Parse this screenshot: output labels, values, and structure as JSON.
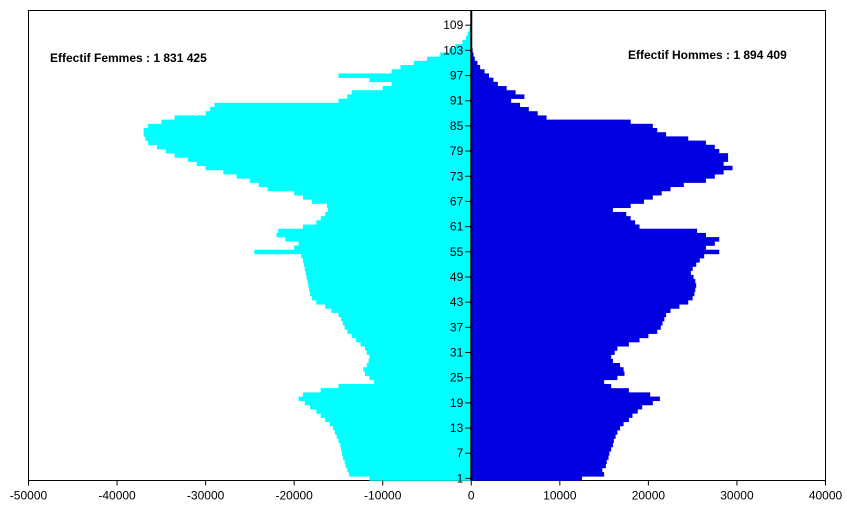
{
  "chart_data": {
    "type": "bar",
    "orientation": "horizontal",
    "annotations": {
      "femmes": "Effectif Femmes : 1 831 425",
      "hommes": "Effectif Hommes : 1 894 409"
    },
    "xlim": [
      -50000,
      40000
    ],
    "x_ticks": [
      -50000,
      -40000,
      -30000,
      -20000,
      -10000,
      0,
      10000,
      20000,
      30000,
      40000
    ],
    "age_range": [
      1,
      112
    ],
    "age_tick_labels": [
      "1",
      "7",
      "13",
      "19",
      "25",
      "31",
      "37",
      "43",
      "49",
      "55",
      "61",
      "67",
      "73",
      "79",
      "85",
      "91",
      "97",
      "103",
      "109"
    ],
    "colors": {
      "femmes": "#00ffff",
      "hommes": "#0000e0",
      "axis": "#000000"
    },
    "series": [
      {
        "key": "femmes",
        "values": [
          11500,
          13800,
          14000,
          14200,
          14300,
          14500,
          14600,
          14700,
          14800,
          15000,
          15200,
          15400,
          15600,
          16000,
          16500,
          17000,
          17500,
          18200,
          18800,
          19500,
          19000,
          17000,
          15000,
          11000,
          11500,
          12000,
          12200,
          11800,
          11600,
          11500,
          11800,
          12000,
          12500,
          13000,
          13500,
          14000,
          14300,
          14500,
          14700,
          15000,
          15800,
          16500,
          17500,
          18000,
          18200,
          18300,
          18400,
          18500,
          18600,
          18700,
          18800,
          18900,
          19000,
          19200,
          24500,
          20000,
          19500,
          21000,
          22000,
          21800,
          19000,
          17500,
          17000,
          16500,
          16200,
          16300,
          18000,
          19000,
          20000,
          23000,
          24000,
          25000,
          26500,
          28000,
          30000,
          31000,
          32000,
          33500,
          34500,
          35500,
          36500,
          36800,
          37000,
          37000,
          36500,
          35000,
          33500,
          30000,
          29500,
          29000,
          15000,
          14000,
          13500,
          10000,
          9000,
          11500,
          15000,
          9000,
          8000,
          6500,
          5000,
          3500,
          2500,
          1800,
          1000,
          600,
          400,
          200,
          100,
          50,
          20,
          10
        ]
      },
      {
        "key": "hommes",
        "values": [
          12500,
          15000,
          14800,
          15200,
          15300,
          15500,
          15600,
          15800,
          16000,
          16100,
          16300,
          16500,
          16800,
          17200,
          17800,
          18200,
          18800,
          19300,
          20500,
          21300,
          20200,
          17800,
          15800,
          15000,
          16500,
          17300,
          17200,
          16800,
          16000,
          15800,
          16200,
          16500,
          17800,
          19000,
          20000,
          21000,
          21400,
          21600,
          21800,
          22000,
          22500,
          23500,
          24500,
          25000,
          25200,
          25300,
          25400,
          25300,
          25100,
          24800,
          25000,
          25400,
          25800,
          26300,
          28000,
          26500,
          27500,
          28000,
          26500,
          25500,
          19000,
          18500,
          18000,
          17500,
          16000,
          18000,
          19500,
          20500,
          21500,
          22500,
          24000,
          26500,
          27500,
          28500,
          29500,
          28500,
          29000,
          29000,
          28000,
          27500,
          26500,
          24500,
          22000,
          21000,
          20500,
          18000,
          8500,
          7500,
          6500,
          5500,
          4500,
          6000,
          5000,
          4000,
          3000,
          2500,
          2000,
          1500,
          1000,
          700,
          400,
          250,
          150,
          80,
          40,
          20,
          10,
          5,
          0,
          0,
          0,
          0
        ]
      }
    ]
  }
}
